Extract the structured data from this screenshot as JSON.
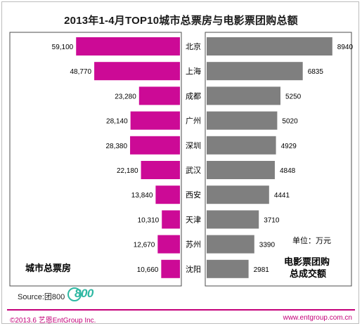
{
  "title": "2013年1-4月TOP10城市总票房与电影票团购总额",
  "left_panel_label_line1": "城市总票房",
  "right_panel_label_line1": "电影票团购",
  "right_panel_label_line2": "总成交额",
  "unit": "单位：万元",
  "source": "Source:团800",
  "logo_text": "800",
  "footer": {
    "copyright": "©2013.6  艺恩EntGroup Inc.",
    "url": "www.entgroup.com.cn"
  },
  "colors": {
    "box_office": "#cc0a96",
    "group_buy": "#7f7f7f",
    "accent": "#c4007a"
  },
  "chart_data": {
    "type": "bar",
    "categories": [
      "北京",
      "上海",
      "成都",
      "广州",
      "深圳",
      "武汉",
      "西安",
      "天津",
      "苏州",
      "沈阳"
    ],
    "box_office": {
      "values": [
        59100,
        48770,
        23280,
        28140,
        28380,
        22180,
        13840,
        10310,
        12670,
        10660
      ],
      "labels": [
        "59,100",
        "48,770",
        "23,280",
        "28,140",
        "28,380",
        "22,180",
        "13,840",
        "10,310",
        "12,670",
        "10,660"
      ]
    },
    "group_buy": {
      "values": [
        8940,
        6835,
        5250,
        5020,
        4929,
        4848,
        4441,
        3710,
        3390,
        2981
      ],
      "labels": [
        "8940",
        "6835",
        "5250",
        "5020",
        "4929",
        "4848",
        "4441",
        "3710",
        "3390",
        "2981"
      ]
    }
  }
}
